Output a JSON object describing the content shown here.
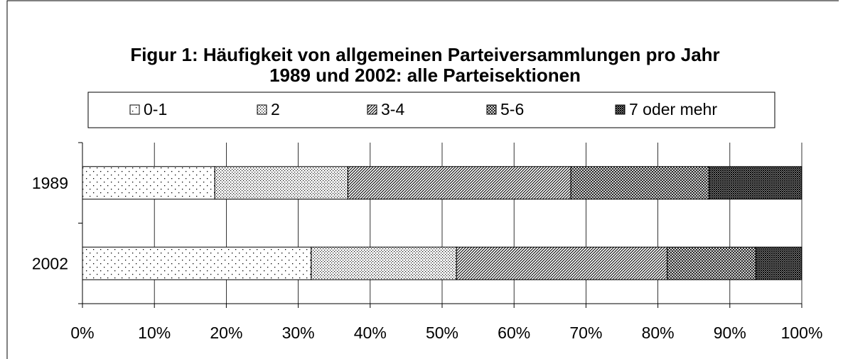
{
  "chart_data": {
    "type": "stacked-bar-horizontal",
    "title": "Figur 1: Häufigkeit von allgemeinen Parteiversammlungen pro Jahr 1989 und 2002: alle Parteisektionen",
    "categories": [
      "1989",
      "2002"
    ],
    "series": [
      {
        "name": "0-1",
        "color": "#000000",
        "pattern": "sparse-dots",
        "values": [
          18.4,
          31.8
        ]
      },
      {
        "name": "2",
        "color": "#000000",
        "pattern": "dense-dots",
        "values": [
          18.5,
          20.2
        ]
      },
      {
        "name": "3-4",
        "color": "#000000",
        "pattern": "diagonal",
        "values": [
          31.0,
          29.3
        ]
      },
      {
        "name": "5-6",
        "color": "#000000",
        "pattern": "crosshatch",
        "values": [
          19.2,
          12.3
        ]
      },
      {
        "name": "7 oder mehr",
        "color": "#000000",
        "pattern": "dense-crosshatch",
        "values": [
          12.9,
          6.4
        ]
      }
    ],
    "xlim": [
      0,
      100
    ],
    "xticks": [
      {
        "value": 0,
        "label": "0%"
      },
      {
        "value": 10,
        "label": "10%"
      },
      {
        "value": 20,
        "label": "20%"
      },
      {
        "value": 30,
        "label": "30%"
      },
      {
        "value": 40,
        "label": "40%"
      },
      {
        "value": 50,
        "label": "50%"
      },
      {
        "value": 60,
        "label": "60%"
      },
      {
        "value": 70,
        "label": "70%"
      },
      {
        "value": 80,
        "label": "80%"
      },
      {
        "value": 90,
        "label": "90%"
      },
      {
        "value": 100,
        "label": "100%"
      }
    ],
    "grid": true,
    "legend": "top"
  }
}
